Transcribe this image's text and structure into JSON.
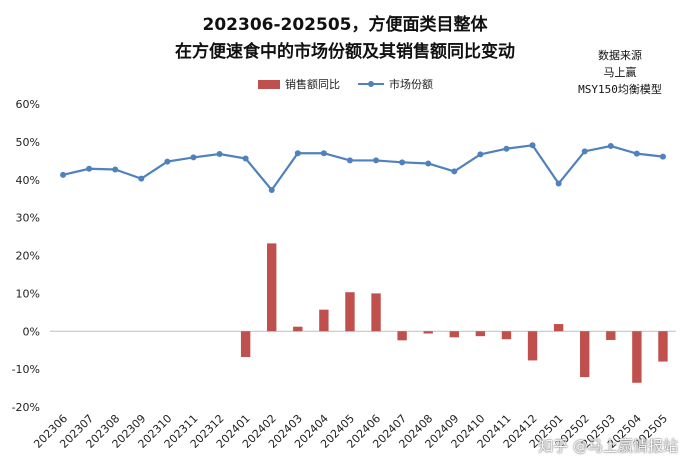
{
  "title_line1": "202306-202505，方便面类目整体",
  "title_line2": "在方便速食中的市场份额及其销售额同比变动",
  "source_lines": [
    "数据来源",
    "马上赢",
    "MSY150均衡模型"
  ],
  "watermark": "知乎 @马上赢情报站",
  "colors": {
    "bar": "#c0504d",
    "line": "#4f81bd"
  },
  "chart_data": {
    "type": "bar+line",
    "categories": [
      "202306",
      "202307",
      "202308",
      "202309",
      "202310",
      "202311",
      "202312",
      "202401",
      "202402",
      "202403",
      "202404",
      "202405",
      "202406",
      "202407",
      "202408",
      "202409",
      "202410",
      "202411",
      "202412",
      "202501",
      "202502",
      "202503",
      "202504",
      "202505"
    ],
    "series": [
      {
        "name": "销售额同比",
        "type": "bar",
        "values": [
          null,
          null,
          null,
          null,
          null,
          null,
          null,
          -6.8,
          23.2,
          1.2,
          5.7,
          10.3,
          10.0,
          -2.4,
          -0.6,
          -1.6,
          -1.3,
          -2.1,
          -7.7,
          1.9,
          -12.1,
          -2.3,
          -13.6,
          -8.0
        ]
      },
      {
        "name": "市场份额",
        "type": "line",
        "values": [
          41.3,
          42.9,
          42.7,
          40.3,
          44.8,
          45.9,
          46.8,
          45.6,
          37.3,
          47.0,
          47.0,
          45.1,
          45.1,
          44.6,
          44.3,
          42.2,
          46.7,
          48.2,
          49.1,
          39.0,
          47.5,
          48.9,
          46.9,
          46.1
        ]
      }
    ],
    "ylim": [
      -20,
      60
    ],
    "yticks": [
      "-20%",
      "-10%",
      "0%",
      "10%",
      "20%",
      "30%",
      "40%",
      "50%",
      "60%"
    ],
    "legend_position": "top-center",
    "grid": false
  }
}
